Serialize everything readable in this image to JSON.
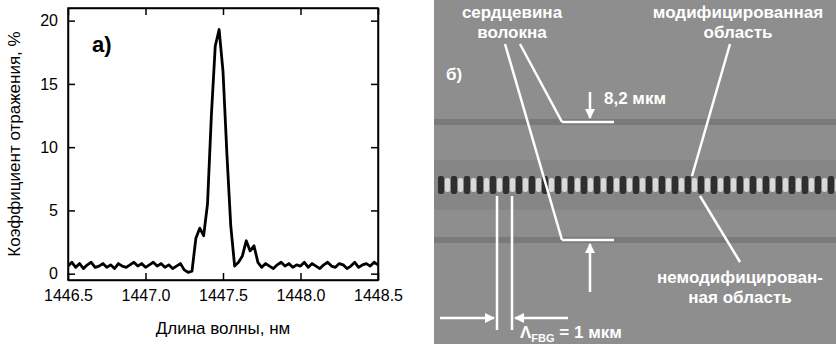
{
  "chart_data": {
    "type": "line",
    "panel_label": "а)",
    "x_label": "Длина волны, нм",
    "y_label": "Коэффициент отражения, %",
    "x": [
      1446.5,
      1446.525,
      1446.55,
      1446.575,
      1446.6,
      1446.625,
      1446.65,
      1446.675,
      1446.7,
      1446.725,
      1446.75,
      1446.775,
      1446.8,
      1446.825,
      1446.85,
      1446.875,
      1446.9,
      1446.925,
      1446.95,
      1446.975,
      1447.0,
      1447.025,
      1447.05,
      1447.075,
      1447.1,
      1447.125,
      1447.15,
      1447.175,
      1447.2,
      1447.225,
      1447.25,
      1447.275,
      1447.3,
      1447.325,
      1447.35,
      1447.375,
      1447.4,
      1447.425,
      1447.45,
      1447.475,
      1447.5,
      1447.525,
      1447.55,
      1447.575,
      1447.6,
      1447.625,
      1447.65,
      1447.675,
      1447.7,
      1447.725,
      1447.75,
      1447.775,
      1447.8,
      1447.825,
      1447.85,
      1447.875,
      1447.9,
      1447.925,
      1447.95,
      1447.975,
      1448.0,
      1448.025,
      1448.05,
      1448.075,
      1448.1,
      1448.125,
      1448.15,
      1448.175,
      1448.2,
      1448.225,
      1448.25,
      1448.275,
      1448.3,
      1448.325,
      1448.35,
      1448.375,
      1448.4,
      1448.425,
      1448.45,
      1448.475,
      1448.5
    ],
    "values": [
      0.6,
      0.9,
      0.5,
      0.8,
      0.4,
      0.7,
      0.9,
      0.5,
      0.6,
      0.8,
      0.5,
      0.7,
      0.4,
      0.8,
      0.6,
      0.5,
      0.7,
      0.9,
      0.6,
      0.8,
      0.5,
      0.7,
      0.9,
      0.6,
      0.8,
      0.5,
      0.7,
      0.4,
      0.6,
      0.8,
      0.3,
      0.1,
      0.2,
      2.8,
      3.6,
      3.0,
      5.5,
      12.5,
      18.0,
      19.3,
      16.0,
      9.5,
      3.8,
      0.6,
      0.9,
      1.4,
      2.6,
      1.8,
      2.2,
      0.9,
      0.5,
      0.8,
      0.6,
      0.4,
      0.7,
      0.9,
      0.6,
      0.8,
      0.5,
      0.7,
      0.6,
      0.9,
      0.5,
      0.8,
      0.6,
      0.4,
      0.7,
      0.9,
      0.6,
      0.5,
      0.8,
      0.7,
      0.4,
      0.6,
      0.9,
      0.5,
      0.7,
      0.8,
      0.6,
      0.9,
      0.7
    ],
    "color": "#000000",
    "xlim": [
      1446.5,
      1448.5
    ],
    "xticks": [
      1446.5,
      {
        "value": 1447,
        "label": "1447.0"
      },
      1447.5,
      {
        "value": 1448,
        "label": "1448.0"
      },
      1448.5
    ],
    "ylim": [
      -0.5,
      21
    ],
    "yticks": [
      0,
      5,
      10,
      15,
      20
    ],
    "grid": false
  },
  "image_panel": {
    "panel_label": "б)",
    "core_label": [
      "сердцевина",
      "волокна"
    ],
    "modified_label": [
      "модифицированная",
      "область"
    ],
    "unmodified_label": [
      "немодифицирован-",
      "ная область"
    ],
    "core_size": "8,2 мкм",
    "period_label": {
      "symbol": "Λ",
      "subscript": "FBG",
      "text": " = 1 мкм"
    }
  }
}
